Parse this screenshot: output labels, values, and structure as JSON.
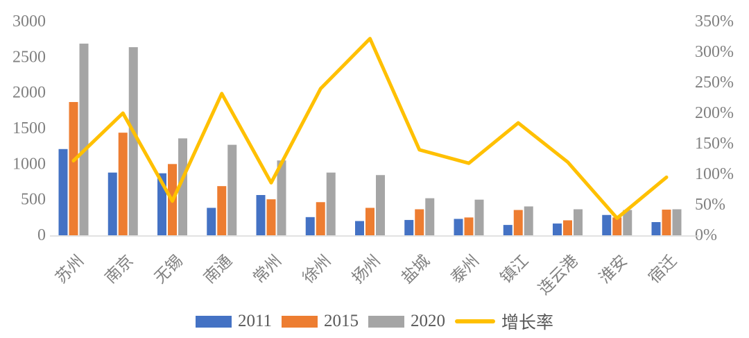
{
  "chart_data": {
    "type": "bar",
    "subtype": "combo-bar-line",
    "title": "",
    "grid": false,
    "categories": [
      "苏州",
      "南京",
      "无锡",
      "南通",
      "常州",
      "徐州",
      "扬州",
      "盐城",
      "泰州",
      "镇江",
      "连云港",
      "淮安",
      "宿迁"
    ],
    "series": [
      {
        "name": "2011",
        "kind": "bar",
        "axis": "left",
        "color": "#4472C4",
        "values": [
          1210,
          880,
          870,
          385,
          565,
          255,
          200,
          215,
          230,
          145,
          165,
          285,
          185
        ]
      },
      {
        "name": "2015",
        "kind": "bar",
        "axis": "left",
        "color": "#ED7D31",
        "values": [
          1870,
          1440,
          1000,
          690,
          505,
          465,
          385,
          365,
          250,
          355,
          210,
          250,
          360
        ]
      },
      {
        "name": "2020",
        "kind": "bar",
        "axis": "left",
        "color": "#A5A5A5",
        "values": [
          2690,
          2640,
          1360,
          1270,
          1050,
          880,
          845,
          520,
          500,
          405,
          365,
          355,
          365
        ]
      },
      {
        "name": "增长率",
        "kind": "line",
        "axis": "right",
        "color": "#FFC000",
        "unit": "%",
        "values": [
          122,
          200,
          56,
          232,
          86,
          240,
          322,
          140,
          118,
          184,
          120,
          28,
          95
        ]
      }
    ],
    "left_axis": {
      "min": 0,
      "max": 3000,
      "step": 500,
      "tick_labels": [
        "3000",
        "2500",
        "2000",
        "1500",
        "1000",
        "500",
        "0"
      ]
    },
    "right_axis": {
      "min": 0,
      "max": 350,
      "step": 50,
      "unit": "%",
      "tick_labels": [
        "350%",
        "300%",
        "250%",
        "200%",
        "150%",
        "100%",
        "50%",
        "0%"
      ]
    },
    "legend": {
      "position": "bottom",
      "entries": [
        "2011",
        "2015",
        "2020",
        "增长率"
      ]
    }
  },
  "colors": {
    "bar_2011": "#4472C4",
    "bar_2015": "#ED7D31",
    "bar_2020": "#A5A5A5",
    "line_growth": "#FFC000",
    "axis_text": "#808080",
    "legend_text": "#595959",
    "axis_line": "#D9D9D9",
    "background": "#FFFFFF"
  }
}
